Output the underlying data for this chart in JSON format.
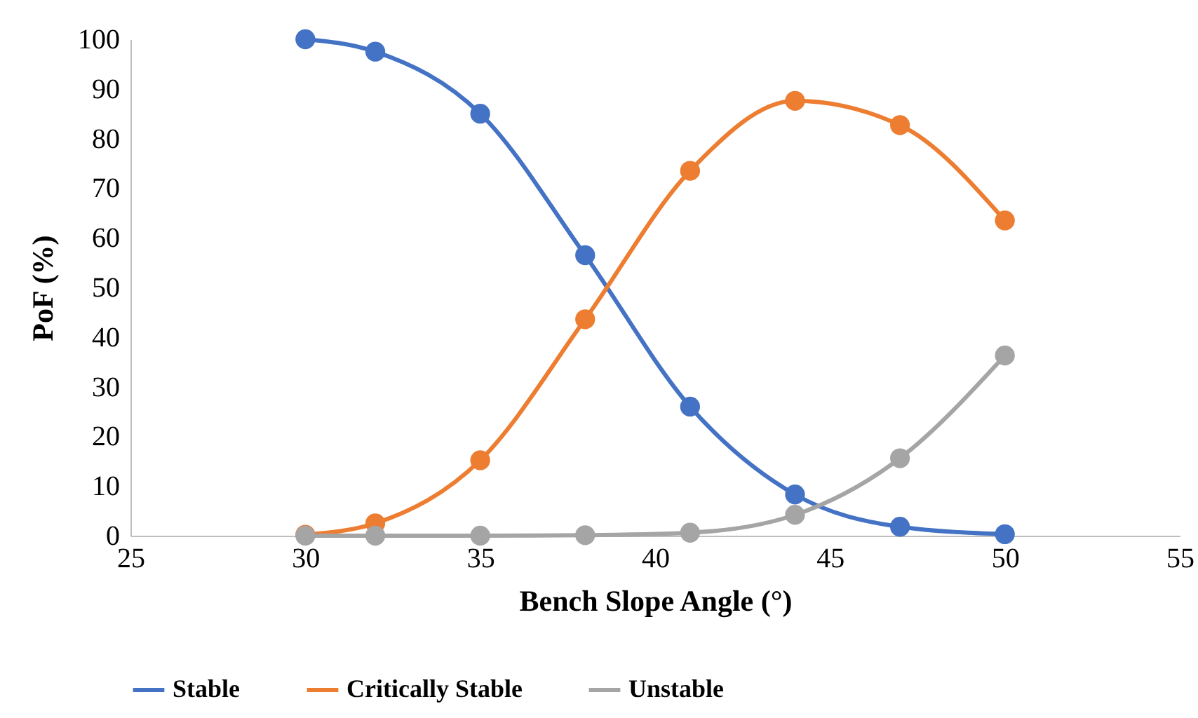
{
  "chart_data": {
    "type": "line",
    "xlabel": "Bench Slope Angle (°)",
    "ylabel": "PoF (%)",
    "x": [
      30,
      32,
      35,
      38,
      41,
      44,
      47,
      50
    ],
    "series": [
      {
        "name": "Stable",
        "color": "#4472c4",
        "values": [
          100,
          97.5,
          85,
          56.5,
          26,
          8.3,
          1.8,
          0.3
        ]
      },
      {
        "name": "Critically Stable",
        "color": "#ed7d31",
        "values": [
          0.2,
          2.5,
          15.2,
          43.6,
          73.5,
          87.6,
          82.7,
          63.5
        ]
      },
      {
        "name": "Unstable",
        "color": "#a5a5a5",
        "values": [
          0,
          0,
          0,
          0.1,
          0.6,
          4.2,
          15.6,
          36.3
        ]
      }
    ],
    "xlim": [
      25,
      55
    ],
    "xticks": [
      25,
      30,
      35,
      40,
      45,
      50,
      55
    ],
    "ylim": [
      0,
      100
    ],
    "yticks": [
      0,
      10,
      20,
      30,
      40,
      50,
      60,
      70,
      80,
      90,
      100
    ],
    "grid": false,
    "legend": "bottom",
    "marker": "circle",
    "line_style": "solid"
  }
}
